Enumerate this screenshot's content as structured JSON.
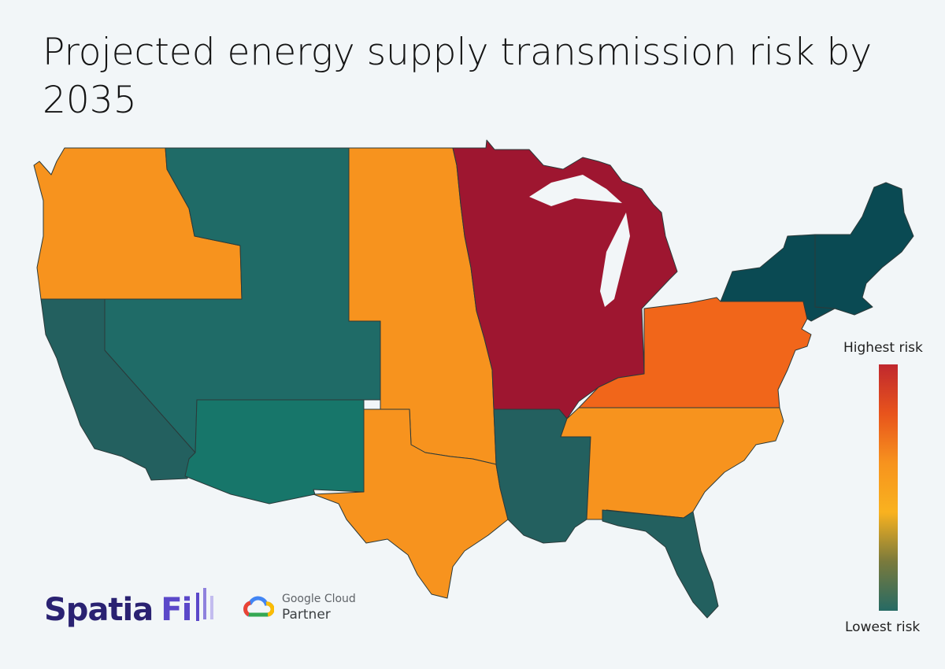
{
  "title": "Projected energy supply transmission risk by 2035",
  "legend": {
    "high_label": "Highest risk",
    "low_label": "Lowest risk",
    "gradient_colors": [
      "#c0282e",
      "#e8541c",
      "#f7931e",
      "#f9b21f",
      "#7a7a3c",
      "#266a64"
    ]
  },
  "colors": {
    "highest": "#9e1630",
    "high": "#f1661a",
    "medium": "#f7931e",
    "low_teal": "#1f6b67",
    "low_green": "#17766a",
    "low_dark": "#0a4a53",
    "low_mid": "#23605f"
  },
  "regions": [
    {
      "name": "Pacific Northwest (Washington, Oregon, Idaho)",
      "risk": "medium"
    },
    {
      "name": "California",
      "risk": "low_mid"
    },
    {
      "name": "Mountain (Montana, Wyoming, Nevada, Utah, Colorado)",
      "risk": "low_teal"
    },
    {
      "name": "Southwest (Arizona, New Mexico)",
      "risk": "low_green"
    },
    {
      "name": "Central Plains (North Dakota to Oklahoma)",
      "risk": "medium"
    },
    {
      "name": "Texas",
      "risk": "medium"
    },
    {
      "name": "Midwest (Minnesota, Wisconsin, Michigan, Iowa, Missouri, Illinois, Indiana)",
      "risk": "highest"
    },
    {
      "name": "Lower Mississippi (Arkansas, Louisiana, Mississippi)",
      "risk": "low_mid"
    },
    {
      "name": "Southeast (Tennessee, Alabama, Georgia, Carolinas)",
      "risk": "medium"
    },
    {
      "name": "Florida",
      "risk": "low_mid"
    },
    {
      "name": "Mid-Atlantic (Ohio, Kentucky, Pennsylvania, Virginia, New Jersey)",
      "risk": "high"
    },
    {
      "name": "New York",
      "risk": "low_dark"
    },
    {
      "name": "New England",
      "risk": "low_dark"
    }
  ],
  "branding": {
    "logo_text_1": "Spatia",
    "logo_text_2": "Fi",
    "logo_color_1": "#2a2272",
    "logo_color_2": "#5b48c9",
    "partner_line_1": "Google Cloud",
    "partner_line_2": "Partner"
  }
}
